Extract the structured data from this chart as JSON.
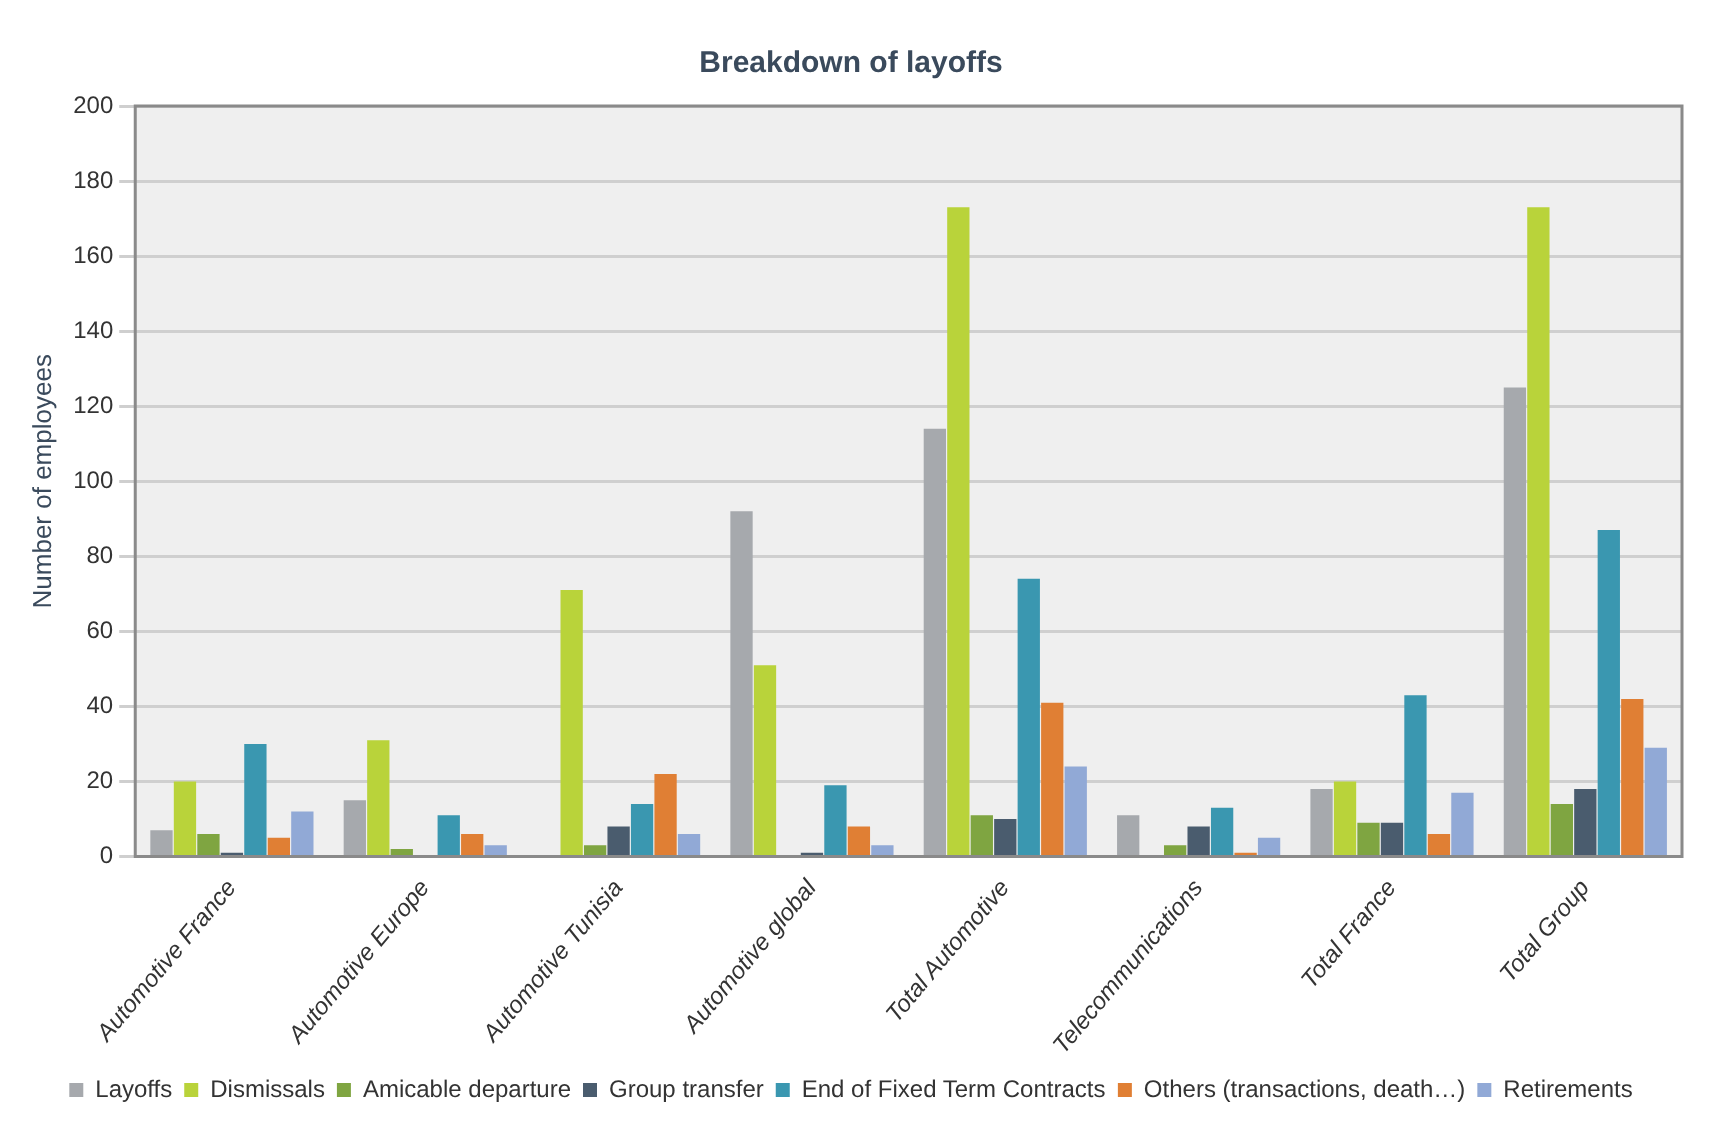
{
  "chart_data": {
    "type": "bar",
    "title": "Breakdown of layoffs",
    "ylabel": "Number of employees",
    "categories": [
      "Automotive France",
      "Automotive Europe",
      "Automotive Tunisia",
      "Automotive global",
      "Total Automotive",
      "Telecommunications",
      "Total France",
      "Total Group"
    ],
    "series": [
      {
        "name": "Layoffs",
        "color": "#a6a9ad",
        "values": [
          7,
          15,
          0,
          92,
          114,
          11,
          18,
          125
        ]
      },
      {
        "name": "Dismissals",
        "color": "#b9d33a",
        "values": [
          20,
          31,
          71,
          51,
          173,
          0,
          20,
          173
        ]
      },
      {
        "name": "Amicable departure",
        "color": "#7fa541",
        "values": [
          6,
          2,
          3,
          0,
          11,
          3,
          9,
          14
        ]
      },
      {
        "name": "Group transfer",
        "color": "#4a5c6e",
        "values": [
          1,
          0,
          8,
          1,
          10,
          8,
          9,
          18
        ]
      },
      {
        "name": "End of Fixed Term Contracts",
        "color": "#3a97b0",
        "values": [
          30,
          11,
          14,
          19,
          74,
          13,
          43,
          87
        ]
      },
      {
        "name": "Others (transactions, death…)",
        "color": "#e07f34",
        "values": [
          5,
          6,
          22,
          8,
          41,
          1,
          6,
          42
        ]
      },
      {
        "name": "Retirements",
        "color": "#91a9d6",
        "values": [
          12,
          3,
          6,
          3,
          24,
          5,
          17,
          29
        ]
      }
    ],
    "ylim": [
      0,
      200
    ],
    "yticks": [
      0,
      20,
      40,
      60,
      80,
      100,
      120,
      140,
      160,
      180,
      200
    ],
    "grid": "y",
    "legend": "bottom"
  }
}
